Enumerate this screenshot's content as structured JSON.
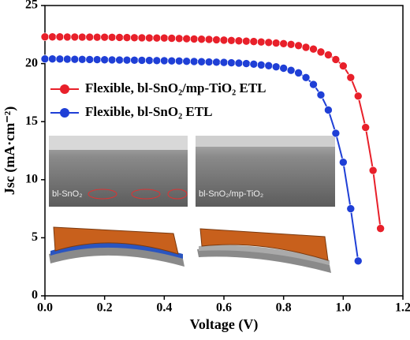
{
  "chart_data": {
    "type": "line",
    "xlabel": "Voltage (V)",
    "ylabel": "Jsc (mA·cm⁻²)",
    "x": [
      0,
      0.025,
      0.05,
      0.075,
      0.1,
      0.125,
      0.15,
      0.175,
      0.2,
      0.225,
      0.25,
      0.275,
      0.3,
      0.325,
      0.35,
      0.375,
      0.4,
      0.425,
      0.45,
      0.475,
      0.5,
      0.525,
      0.55,
      0.575,
      0.6,
      0.625,
      0.65,
      0.675,
      0.7,
      0.725,
      0.75,
      0.775,
      0.8,
      0.825,
      0.85,
      0.875,
      0.9,
      0.925,
      0.95,
      0.975,
      1.0,
      1.025,
      1.05,
      1.075,
      1.1,
      1.125
    ],
    "series": [
      {
        "name": "Flexible, bl-SnO₂/mp-TiO₂ ETL",
        "color": "#e8202a",
        "values": [
          22.3,
          22.3,
          22.3,
          22.29,
          22.29,
          22.28,
          22.28,
          22.27,
          22.27,
          22.26,
          22.25,
          22.24,
          22.23,
          22.22,
          22.21,
          22.2,
          22.2,
          22.18,
          22.16,
          22.14,
          22.12,
          22.1,
          22.08,
          22.05,
          22.02,
          21.99,
          21.96,
          21.93,
          21.9,
          21.86,
          21.82,
          21.77,
          21.72,
          21.65,
          21.55,
          21.4,
          21.25,
          21.0,
          20.75,
          20.35,
          19.8,
          18.8,
          17.2,
          14.5,
          10.8,
          5.8
        ]
      },
      {
        "name": "Flexible, bl-SnO₂ ETL",
        "color": "#1f3fd6",
        "values": [
          20.4,
          20.4,
          20.39,
          20.38,
          20.37,
          20.36,
          20.35,
          20.34,
          20.33,
          20.32,
          20.31,
          20.3,
          20.29,
          20.28,
          20.27,
          20.26,
          20.25,
          20.23,
          20.22,
          20.2,
          20.18,
          20.16,
          20.14,
          20.12,
          20.1,
          20.07,
          20.04,
          20.0,
          19.95,
          19.88,
          19.82,
          19.72,
          19.6,
          19.42,
          19.2,
          18.8,
          18.2,
          17.3,
          16.0,
          14.0,
          11.5,
          7.5,
          3.0,
          null,
          null,
          null
        ]
      }
    ],
    "xlim": [
      0,
      1.2
    ],
    "xticks": [
      {
        "value": 0,
        "label": "0.0"
      },
      0.2,
      0.4,
      0.6,
      0.8,
      {
        "value": 1,
        "label": "1.0"
      },
      1.2
    ],
    "ylim": [
      0,
      25
    ],
    "yticks": [
      0,
      5,
      10,
      15,
      20,
      25
    ],
    "legend": "upper left",
    "grid": false,
    "annotations": [
      "bl-SnO₂",
      "bl-SnO₂/mp-TiO₂"
    ]
  }
}
